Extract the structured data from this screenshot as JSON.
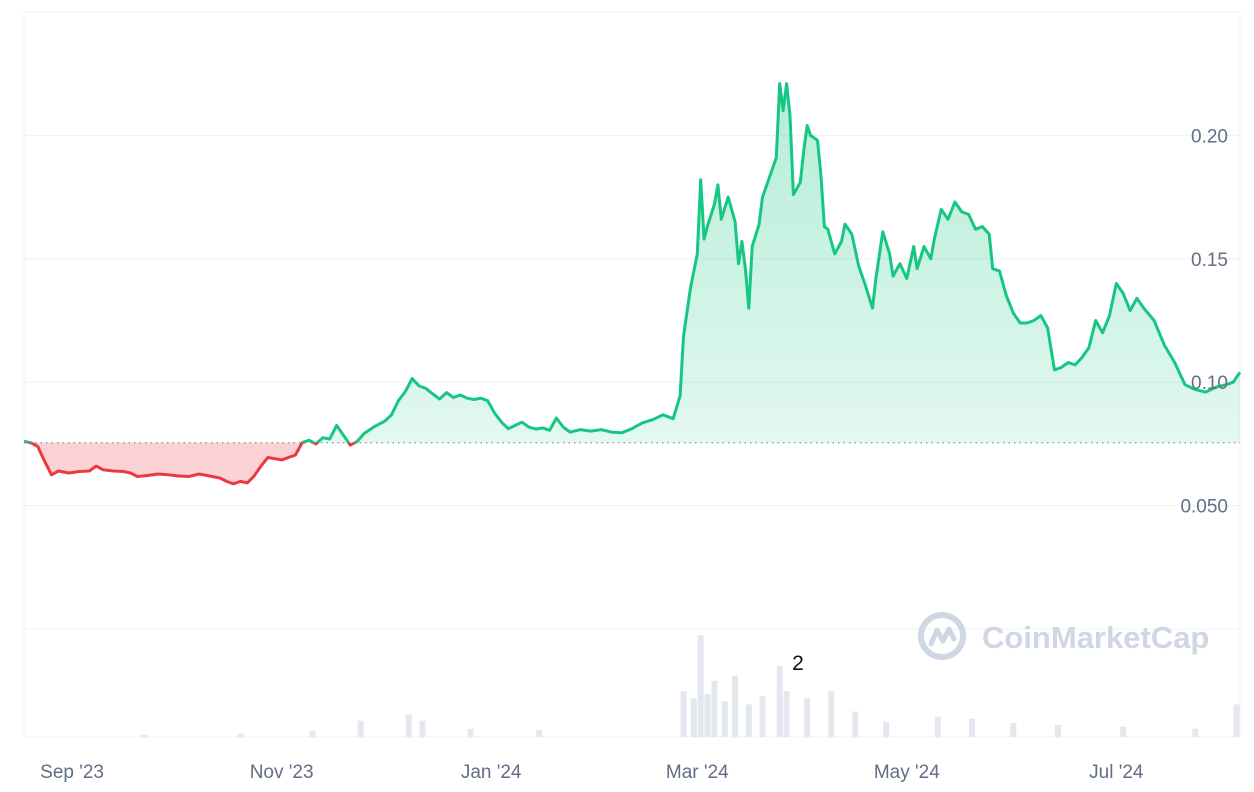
{
  "watermark": {
    "text": "CoinMarketCap",
    "icon": "coinmarketcap-logo-icon"
  },
  "colors": {
    "up": "#16c784",
    "down": "#ea3943",
    "grid": "#eef0f4",
    "baseline": "#8c96a8",
    "volume": "#e3e8ef",
    "axis_text": "#616e85"
  },
  "chart_data": {
    "type": "area",
    "title": "",
    "xlabel": "",
    "ylabel": "",
    "x_ticks": [
      {
        "date": "2023-09-01",
        "label": "Sep '23"
      },
      {
        "date": "2023-11-01",
        "label": "Nov '23"
      },
      {
        "date": "2024-01-01",
        "label": "Jan '24"
      },
      {
        "date": "2024-03-01",
        "label": "Mar '24"
      },
      {
        "date": "2024-05-01",
        "label": "May '24"
      },
      {
        "date": "2024-07-01",
        "label": "Jul '24"
      }
    ],
    "y_ticks": [
      {
        "value": 0.05,
        "label": "0.050"
      },
      {
        "value": 0.1,
        "label": "0.10"
      },
      {
        "value": 0.15,
        "label": "0.15"
      },
      {
        "value": 0.2,
        "label": "0.20"
      }
    ],
    "ylim": [
      0.0,
      0.25
    ],
    "xlim": [
      "2023-08-18",
      "2024-08-06"
    ],
    "grid": true,
    "baseline": 0.0755,
    "series": [
      {
        "values": [
          [
            "2023-08-18",
            0.076
          ],
          [
            "2023-08-20",
            0.0755
          ],
          [
            "2023-08-22",
            0.074
          ],
          [
            "2023-08-24",
            0.068
          ],
          [
            "2023-08-26",
            0.0625
          ],
          [
            "2023-08-28",
            0.064
          ],
          [
            "2023-08-31",
            0.0632
          ],
          [
            "2023-09-03",
            0.0638
          ],
          [
            "2023-09-06",
            0.064
          ],
          [
            "2023-09-08",
            0.066
          ],
          [
            "2023-09-10",
            0.0645
          ],
          [
            "2023-09-13",
            0.064
          ],
          [
            "2023-09-16",
            0.0638
          ],
          [
            "2023-09-18",
            0.0632
          ],
          [
            "2023-09-20",
            0.0618
          ],
          [
            "2023-09-23",
            0.0622
          ],
          [
            "2023-09-26",
            0.0628
          ],
          [
            "2023-09-29",
            0.0625
          ],
          [
            "2023-10-02",
            0.062
          ],
          [
            "2023-10-05",
            0.0618
          ],
          [
            "2023-10-08",
            0.0628
          ],
          [
            "2023-10-11",
            0.062
          ],
          [
            "2023-10-14",
            0.0612
          ],
          [
            "2023-10-16",
            0.0598
          ],
          [
            "2023-10-18",
            0.0588
          ],
          [
            "2023-10-20",
            0.0598
          ],
          [
            "2023-10-22",
            0.0592
          ],
          [
            "2023-10-24",
            0.062
          ],
          [
            "2023-10-26",
            0.066
          ],
          [
            "2023-10-28",
            0.0695
          ],
          [
            "2023-10-30",
            0.069
          ],
          [
            "2023-11-01",
            0.0685
          ],
          [
            "2023-11-03",
            0.0695
          ],
          [
            "2023-11-05",
            0.0705
          ],
          [
            "2023-11-07",
            0.0755
          ],
          [
            "2023-11-09",
            0.0765
          ],
          [
            "2023-11-11",
            0.075
          ],
          [
            "2023-11-13",
            0.0775
          ],
          [
            "2023-11-15",
            0.077
          ],
          [
            "2023-11-17",
            0.0825
          ],
          [
            "2023-11-19",
            0.0785
          ],
          [
            "2023-11-21",
            0.0745
          ],
          [
            "2023-11-23",
            0.076
          ],
          [
            "2023-11-25",
            0.0792
          ],
          [
            "2023-11-28",
            0.082
          ],
          [
            "2023-12-01",
            0.0842
          ],
          [
            "2023-12-03",
            0.0868
          ],
          [
            "2023-12-05",
            0.0925
          ],
          [
            "2023-12-07",
            0.0962
          ],
          [
            "2023-12-09",
            0.1015
          ],
          [
            "2023-12-11",
            0.0985
          ],
          [
            "2023-12-13",
            0.0975
          ],
          [
            "2023-12-15",
            0.0952
          ],
          [
            "2023-12-17",
            0.0932
          ],
          [
            "2023-12-19",
            0.0958
          ],
          [
            "2023-12-21",
            0.0938
          ],
          [
            "2023-12-23",
            0.0948
          ],
          [
            "2023-12-25",
            0.0935
          ],
          [
            "2023-12-27",
            0.093
          ],
          [
            "2023-12-29",
            0.0935
          ],
          [
            "2023-12-31",
            0.0925
          ],
          [
            "2024-01-02",
            0.0875
          ],
          [
            "2024-01-04",
            0.0838
          ],
          [
            "2024-01-06",
            0.0812
          ],
          [
            "2024-01-08",
            0.0825
          ],
          [
            "2024-01-10",
            0.0838
          ],
          [
            "2024-01-12",
            0.0818
          ],
          [
            "2024-01-14",
            0.081
          ],
          [
            "2024-01-16",
            0.0815
          ],
          [
            "2024-01-18",
            0.0805
          ],
          [
            "2024-01-20",
            0.0855
          ],
          [
            "2024-01-22",
            0.0818
          ],
          [
            "2024-01-24",
            0.0798
          ],
          [
            "2024-01-27",
            0.0808
          ],
          [
            "2024-01-30",
            0.0802
          ],
          [
            "2024-02-02",
            0.0808
          ],
          [
            "2024-02-05",
            0.0798
          ],
          [
            "2024-02-08",
            0.0795
          ],
          [
            "2024-02-11",
            0.0812
          ],
          [
            "2024-02-14",
            0.0835
          ],
          [
            "2024-02-17",
            0.0848
          ],
          [
            "2024-02-20",
            0.0868
          ],
          [
            "2024-02-23",
            0.0852
          ],
          [
            "2024-02-25",
            0.0945
          ],
          [
            "2024-02-26",
            0.1185
          ],
          [
            "2024-02-28",
            0.138
          ],
          [
            "2024-03-01",
            0.152
          ],
          [
            "2024-03-02",
            0.182
          ],
          [
            "2024-03-03",
            0.158
          ],
          [
            "2024-03-04",
            0.1635
          ],
          [
            "2024-03-06",
            0.172
          ],
          [
            "2024-03-07",
            0.18
          ],
          [
            "2024-03-08",
            0.166
          ],
          [
            "2024-03-10",
            0.175
          ],
          [
            "2024-03-12",
            0.165
          ],
          [
            "2024-03-13",
            0.148
          ],
          [
            "2024-03-14",
            0.157
          ],
          [
            "2024-03-15",
            0.146
          ],
          [
            "2024-03-16",
            0.13
          ],
          [
            "2024-03-17",
            0.155
          ],
          [
            "2024-03-19",
            0.164
          ],
          [
            "2024-03-20",
            0.175
          ],
          [
            "2024-03-22",
            0.183
          ],
          [
            "2024-03-24",
            0.191
          ],
          [
            "2024-03-25",
            0.221
          ],
          [
            "2024-03-26",
            0.21
          ],
          [
            "2024-03-27",
            0.221
          ],
          [
            "2024-03-28",
            0.208
          ],
          [
            "2024-03-29",
            0.176
          ],
          [
            "2024-03-31",
            0.181
          ],
          [
            "2024-04-01",
            0.194
          ],
          [
            "2024-04-02",
            0.204
          ],
          [
            "2024-04-03",
            0.2
          ],
          [
            "2024-04-05",
            0.198
          ],
          [
            "2024-04-06",
            0.184
          ],
          [
            "2024-04-07",
            0.163
          ],
          [
            "2024-04-08",
            0.162
          ],
          [
            "2024-04-10",
            0.152
          ],
          [
            "2024-04-12",
            0.157
          ],
          [
            "2024-04-13",
            0.164
          ],
          [
            "2024-04-15",
            0.16
          ],
          [
            "2024-04-17",
            0.147
          ],
          [
            "2024-04-19",
            0.139
          ],
          [
            "2024-04-21",
            0.13
          ],
          [
            "2024-04-22",
            0.142
          ],
          [
            "2024-04-24",
            0.161
          ],
          [
            "2024-04-26",
            0.152
          ],
          [
            "2024-04-27",
            0.143
          ],
          [
            "2024-04-29",
            0.148
          ],
          [
            "2024-05-01",
            0.142
          ],
          [
            "2024-05-03",
            0.155
          ],
          [
            "2024-05-04",
            0.146
          ],
          [
            "2024-05-06",
            0.155
          ],
          [
            "2024-05-08",
            0.15
          ],
          [
            "2024-05-09",
            0.158
          ],
          [
            "2024-05-11",
            0.17
          ],
          [
            "2024-05-13",
            0.166
          ],
          [
            "2024-05-15",
            0.173
          ],
          [
            "2024-05-17",
            0.169
          ],
          [
            "2024-05-19",
            0.168
          ],
          [
            "2024-05-21",
            0.162
          ],
          [
            "2024-05-23",
            0.163
          ],
          [
            "2024-05-25",
            0.16
          ],
          [
            "2024-05-26",
            0.146
          ],
          [
            "2024-05-28",
            0.145
          ],
          [
            "2024-05-30",
            0.135
          ],
          [
            "2024-06-01",
            0.128
          ],
          [
            "2024-06-03",
            0.124
          ],
          [
            "2024-06-05",
            0.124
          ],
          [
            "2024-06-07",
            0.125
          ],
          [
            "2024-06-09",
            0.127
          ],
          [
            "2024-06-11",
            0.122
          ],
          [
            "2024-06-13",
            0.105
          ],
          [
            "2024-06-15",
            0.106
          ],
          [
            "2024-06-17",
            0.108
          ],
          [
            "2024-06-19",
            0.107
          ],
          [
            "2024-06-21",
            0.11
          ],
          [
            "2024-06-23",
            0.114
          ],
          [
            "2024-06-25",
            0.125
          ],
          [
            "2024-06-27",
            0.12
          ],
          [
            "2024-06-29",
            0.127
          ],
          [
            "2024-07-01",
            0.14
          ],
          [
            "2024-07-03",
            0.136
          ],
          [
            "2024-07-05",
            0.129
          ],
          [
            "2024-07-07",
            0.134
          ],
          [
            "2024-07-09",
            0.13
          ],
          [
            "2024-07-12",
            0.125
          ],
          [
            "2024-07-15",
            0.115
          ],
          [
            "2024-07-18",
            0.108
          ],
          [
            "2024-07-21",
            0.099
          ],
          [
            "2024-07-24",
            0.097
          ],
          [
            "2024-07-27",
            0.096
          ],
          [
            "2024-07-30",
            0.098
          ],
          [
            "2024-08-02",
            0.099
          ],
          [
            "2024-08-04",
            0.1
          ],
          [
            "2024-08-06",
            0.104
          ]
        ]
      }
    ],
    "volume": {
      "max_label": "2",
      "bars": [
        [
          "2023-09-22",
          0.02
        ],
        [
          "2023-10-20",
          0.03
        ],
        [
          "2023-11-10",
          0.06
        ],
        [
          "2023-11-24",
          0.16
        ],
        [
          "2023-12-08",
          0.22
        ],
        [
          "2023-12-12",
          0.16
        ],
        [
          "2023-12-26",
          0.08
        ],
        [
          "2024-01-15",
          0.07
        ],
        [
          "2024-02-26",
          0.45
        ],
        [
          "2024-02-29",
          0.38
        ],
        [
          "2024-03-02",
          1.0
        ],
        [
          "2024-03-04",
          0.42
        ],
        [
          "2024-03-06",
          0.55
        ],
        [
          "2024-03-09",
          0.35
        ],
        [
          "2024-03-12",
          0.6
        ],
        [
          "2024-03-16",
          0.32
        ],
        [
          "2024-03-20",
          0.4
        ],
        [
          "2024-03-25",
          0.7
        ],
        [
          "2024-03-27",
          0.45
        ],
        [
          "2024-04-02",
          0.38
        ],
        [
          "2024-04-09",
          0.45
        ],
        [
          "2024-04-16",
          0.25
        ],
        [
          "2024-04-25",
          0.15
        ],
        [
          "2024-05-10",
          0.2
        ],
        [
          "2024-05-20",
          0.18
        ],
        [
          "2024-06-01",
          0.14
        ],
        [
          "2024-06-14",
          0.12
        ],
        [
          "2024-07-03",
          0.1
        ],
        [
          "2024-07-24",
          0.08
        ],
        [
          "2024-08-05",
          0.32
        ]
      ]
    }
  }
}
